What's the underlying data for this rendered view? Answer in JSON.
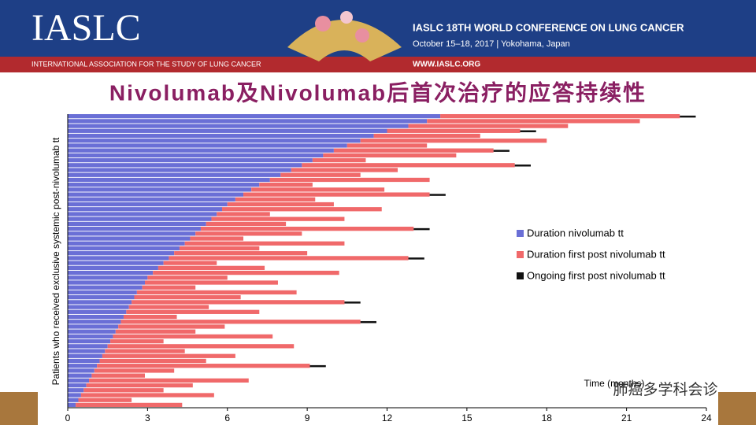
{
  "header": {
    "logo": "IASLC",
    "org": "INTERNATIONAL ASSOCIATION FOR THE STUDY OF LUNG CANCER",
    "conference": "IASLC 18TH WORLD CONFERENCE ON LUNG CANCER",
    "dates": "October 15–18, 2017 | Yokohama, Japan",
    "url": "WWW.IASLC.ORG"
  },
  "watermark": "肺癌多学科会诊",
  "chart_data": {
    "type": "swimmer",
    "title": "Nivolumab及Nivolumab后首次治疗的应答持续性",
    "ylabel": "Patients who received exclusive systemic post-nivolumab tt",
    "xlabel": "Time (months)",
    "xlim": [
      0,
      24
    ],
    "xticks": [
      0,
      3,
      6,
      9,
      12,
      15,
      18,
      21,
      24
    ],
    "legend": "right",
    "series": [
      {
        "name": "Duration nivolumab tt",
        "color": "#6a6fd6",
        "values": [
          14,
          13.5,
          12.8,
          12,
          11.5,
          11,
          10.5,
          10,
          9.6,
          9.2,
          8.8,
          8.4,
          8,
          7.6,
          7.2,
          6.9,
          6.6,
          6.3,
          6,
          5.8,
          5.6,
          5.4,
          5.2,
          5,
          4.8,
          4.6,
          4.4,
          4.2,
          4,
          3.8,
          3.6,
          3.4,
          3.2,
          3,
          2.9,
          2.8,
          2.6,
          2.5,
          2.4,
          2.3,
          2.2,
          2.1,
          2,
          1.9,
          1.8,
          1.7,
          1.6,
          1.5,
          1.4,
          1.3,
          1.2,
          1.1,
          1,
          0.9,
          0.8,
          0.7,
          0.6,
          0.5,
          0.4,
          0.3
        ]
      },
      {
        "name": "Duration first post nivolumab tt",
        "color": "#f0696a",
        "values": [
          9,
          8,
          6,
          5,
          4,
          7,
          3,
          6,
          5,
          2,
          8,
          4,
          3,
          6,
          2,
          5,
          7,
          3,
          4,
          6,
          2,
          5,
          3,
          8,
          4,
          2,
          6,
          3,
          5,
          9,
          2,
          4,
          7,
          3,
          5,
          2,
          6,
          4,
          8,
          3,
          5,
          2,
          9,
          4,
          3,
          6,
          2,
          7,
          3,
          5,
          4,
          8,
          3,
          2,
          6,
          4,
          3,
          5,
          2,
          4
        ]
      },
      {
        "name": "Ongoing first post nivolumab tt",
        "color": "#111111",
        "values": [
          0.6,
          null,
          null,
          0.6,
          null,
          null,
          null,
          0.6,
          null,
          null,
          0.6,
          null,
          null,
          null,
          null,
          null,
          0.6,
          null,
          null,
          null,
          null,
          null,
          null,
          0.6,
          null,
          null,
          null,
          null,
          null,
          0.6,
          null,
          null,
          null,
          null,
          null,
          null,
          null,
          null,
          0.6,
          null,
          null,
          null,
          0.6,
          null,
          null,
          null,
          null,
          null,
          null,
          null,
          null,
          0.6,
          null,
          null,
          null,
          null,
          null,
          null,
          null,
          null
        ]
      }
    ]
  }
}
